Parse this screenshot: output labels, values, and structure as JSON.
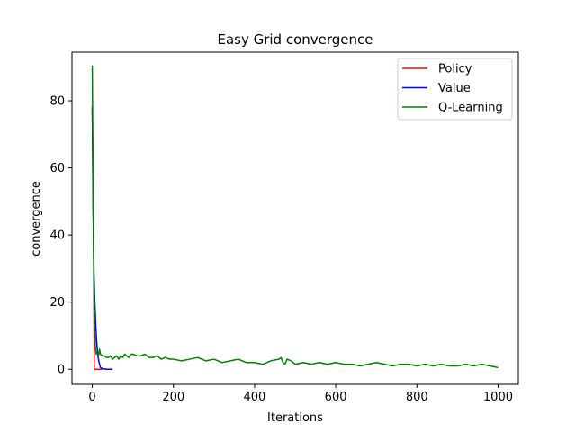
{
  "chart_data": {
    "type": "line",
    "title": "Easy Grid convergence",
    "xlabel": "Iterations",
    "ylabel": "convergence",
    "xlim": [
      -50,
      1050
    ],
    "ylim": [
      -4.5,
      94.5
    ],
    "xticks": [
      0,
      200,
      400,
      600,
      800,
      1000
    ],
    "yticks": [
      0,
      20,
      40,
      60,
      80
    ],
    "grid": false,
    "legend_position": "top-right",
    "series": [
      {
        "name": "Policy",
        "color": "#ff0000",
        "x": [
          0,
          3,
          5,
          10,
          15,
          20,
          25
        ],
        "y": [
          78.5,
          40,
          0,
          0,
          0,
          0,
          0
        ]
      },
      {
        "name": "Value",
        "color": "#0000ff",
        "x": [
          0,
          2,
          4,
          6,
          8,
          10,
          12,
          14,
          16,
          18,
          20,
          25,
          30,
          35,
          40,
          45,
          50
        ],
        "y": [
          78,
          48,
          30,
          21,
          15,
          10,
          6.5,
          4,
          2.5,
          1.5,
          0.5,
          0.2,
          0.1,
          0,
          0,
          0,
          0
        ]
      },
      {
        "name": "Q-Learning",
        "color": "#008000",
        "x": [
          0,
          2,
          4,
          6,
          8,
          10,
          12,
          15,
          18,
          20,
          25,
          30,
          35,
          40,
          45,
          50,
          55,
          60,
          65,
          70,
          75,
          80,
          85,
          90,
          95,
          100,
          110,
          120,
          130,
          140,
          150,
          160,
          170,
          180,
          190,
          200,
          220,
          240,
          260,
          280,
          300,
          320,
          340,
          360,
          380,
          400,
          420,
          440,
          460,
          465,
          470,
          475,
          480,
          490,
          500,
          520,
          540,
          560,
          580,
          600,
          620,
          640,
          660,
          680,
          700,
          720,
          740,
          760,
          780,
          800,
          820,
          840,
          860,
          880,
          900,
          920,
          940,
          960,
          980,
          1000
        ],
        "y": [
          90.5,
          55,
          25,
          12,
          6,
          4.5,
          5,
          4,
          6,
          4.5,
          4,
          4,
          3.5,
          3.5,
          4,
          3,
          3.5,
          4,
          3,
          4,
          3.5,
          4.5,
          4,
          3.5,
          4.5,
          4.5,
          4,
          4,
          4.5,
          3.5,
          3.5,
          4,
          3,
          3.5,
          3,
          3,
          2.5,
          3,
          3.5,
          2.5,
          3,
          2,
          2.5,
          3,
          2,
          2,
          1.5,
          2.5,
          3,
          3.5,
          2,
          1.5,
          3,
          2.5,
          1.5,
          2,
          1.5,
          2,
          1.5,
          2,
          1.5,
          1.5,
          1,
          1.5,
          2,
          1.5,
          1,
          1.5,
          1.5,
          1,
          1.5,
          1,
          1.5,
          1,
          1,
          1.5,
          1,
          1.5,
          1,
          0.5
        ]
      }
    ]
  }
}
